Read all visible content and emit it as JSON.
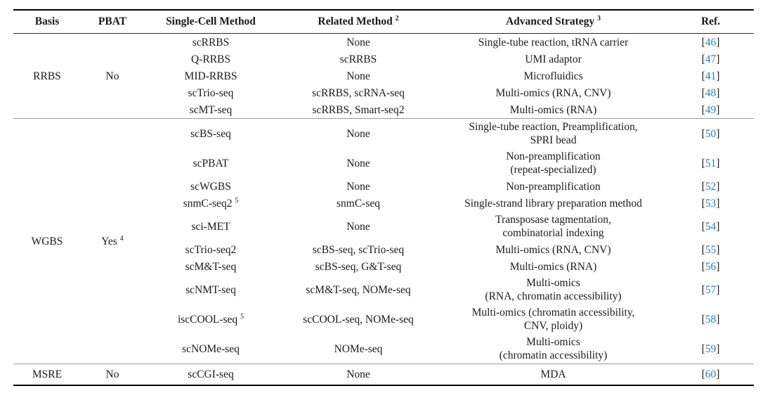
{
  "table": {
    "link_color": "#2d7dbd",
    "ref_brackets": [
      "[",
      "]"
    ],
    "columns": [
      {
        "label": "Basis",
        "sup": ""
      },
      {
        "label": "PBAT",
        "sup": ""
      },
      {
        "label": "Single-Cell Method",
        "sup": ""
      },
      {
        "label": "Related Method",
        "sup": "2"
      },
      {
        "label": "Advanced Strategy",
        "sup": "3"
      },
      {
        "label": "Ref.",
        "sup": ""
      }
    ],
    "sections": [
      {
        "basis": "RRBS",
        "pbat": "No",
        "pbat_sup": "",
        "rows": [
          {
            "method": "scRRBS",
            "method_sup": "",
            "related": "None",
            "strategy_lines": [
              "Single-tube reaction, tRNA carrier"
            ],
            "ref": "46"
          },
          {
            "method": "Q-RRBS",
            "method_sup": "",
            "related": "scRRBS",
            "strategy_lines": [
              "UMI adaptor"
            ],
            "ref": "47"
          },
          {
            "method": "MID-RRBS",
            "method_sup": "",
            "related": "None",
            "strategy_lines": [
              "Microfluidics"
            ],
            "ref": "41"
          },
          {
            "method": "scTrio-seq",
            "method_sup": "",
            "related": "scRRBS, scRNA-seq",
            "strategy_lines": [
              "Multi-omics (RNA, CNV)"
            ],
            "ref": "48"
          },
          {
            "method": "scMT-seq",
            "method_sup": "",
            "related": "scRRBS, Smart-seq2",
            "strategy_lines": [
              "Multi-omics (RNA)"
            ],
            "ref": "49"
          }
        ]
      },
      {
        "basis": "WGBS",
        "pbat": "Yes",
        "pbat_sup": "4",
        "rows": [
          {
            "method": "scBS-seq",
            "method_sup": "",
            "related": "None",
            "strategy_lines": [
              "Single-tube reaction, Preamplification,",
              "SPRI bead"
            ],
            "ref": "50"
          },
          {
            "method": "scPBAT",
            "method_sup": "",
            "related": "None",
            "strategy_lines": [
              "Non-preamplification",
              "(repeat-specialized)"
            ],
            "ref": "51"
          },
          {
            "method": "scWGBS",
            "method_sup": "",
            "related": "None",
            "strategy_lines": [
              "Non-preamplification"
            ],
            "ref": "52"
          },
          {
            "method": "snmC-seq2",
            "method_sup": "5",
            "related": "snmC-seq",
            "strategy_lines": [
              "Single-strand library preparation method"
            ],
            "ref": "53"
          },
          {
            "method": "sci-MET",
            "method_sup": "",
            "related": "None",
            "strategy_lines": [
              "Transposase tagmentation,",
              "combinatorial indexing"
            ],
            "ref": "54"
          },
          {
            "method": "scTrio-seq2",
            "method_sup": "",
            "related": "scBS-seq, scTrio-seq",
            "strategy_lines": [
              "Multi-omics (RNA, CNV)"
            ],
            "ref": "55"
          },
          {
            "method": "scM&T-seq",
            "method_sup": "",
            "related": "scBS-seq, G&T-seq",
            "strategy_lines": [
              "Multi-omics (RNA)"
            ],
            "ref": "56"
          },
          {
            "method": "scNMT-seq",
            "method_sup": "",
            "related": "scM&T-seq, NOMe-seq",
            "strategy_lines": [
              "Multi-omics",
              "(RNA, chromatin accessibility)"
            ],
            "ref": "57"
          },
          {
            "method": "iscCOOL-seq",
            "method_sup": "5",
            "related": "scCOOL-seq, NOMe-seq",
            "strategy_lines": [
              "Multi-omics (chromatin accessibility,",
              "CNV, ploidy)"
            ],
            "ref": "58"
          },
          {
            "method": "scNOMe-seq",
            "method_sup": "",
            "related": "NOMe-seq",
            "strategy_lines": [
              "Multi-omics",
              "(chromatin accessibility)"
            ],
            "ref": "59"
          }
        ]
      },
      {
        "basis": "MSRE",
        "pbat": "No",
        "pbat_sup": "",
        "rows": [
          {
            "method": "scCGI-seq",
            "method_sup": "",
            "related": "None",
            "strategy_lines": [
              "MDA"
            ],
            "ref": "60"
          }
        ]
      }
    ]
  }
}
